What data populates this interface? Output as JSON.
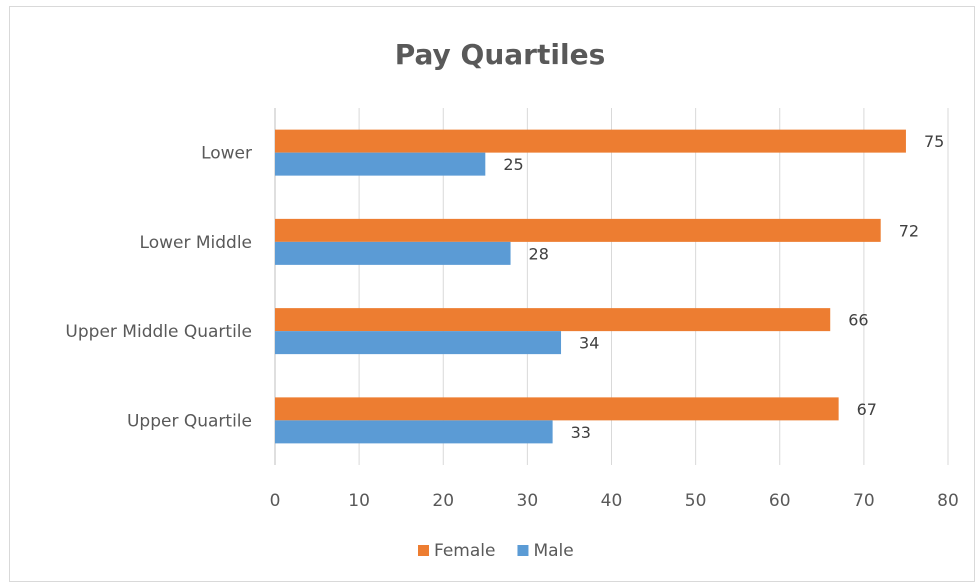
{
  "chart_data": {
    "type": "bar",
    "orientation": "horizontal",
    "title": "Pay Quartiles",
    "categories": [
      "Lower",
      "Lower Middle",
      "Upper Middle Quartile",
      "Upper Quartile"
    ],
    "series": [
      {
        "name": "Female",
        "values": [
          75,
          72,
          66,
          67
        ],
        "color": "#ED7D31"
      },
      {
        "name": "Male",
        "values": [
          25,
          28,
          34,
          33
        ],
        "color": "#5B9BD5"
      }
    ],
    "xlim": [
      0,
      80
    ],
    "xticks": [
      "0",
      "10",
      "20",
      "30",
      "40",
      "50",
      "60",
      "70",
      "80"
    ],
    "grid": true,
    "legend": "bottom"
  }
}
